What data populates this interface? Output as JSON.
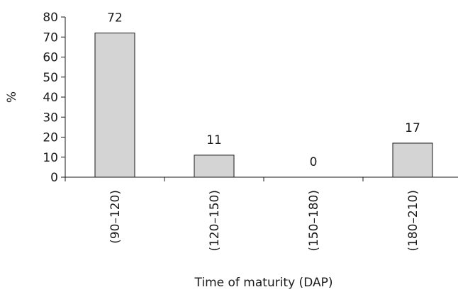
{
  "chart_data": {
    "type": "bar",
    "categories": [
      "(90–120)",
      "(120–150)",
      "(150–180)",
      "(180–210)"
    ],
    "values": [
      72,
      11,
      0,
      17
    ],
    "data_labels": [
      "72",
      "11",
      "0",
      "17"
    ],
    "title": "",
    "xlabel": "Time of maturity (DAP)",
    "ylabel": "%",
    "ylim": [
      0,
      80
    ],
    "yticks": [
      0,
      10,
      20,
      30,
      40,
      50,
      60,
      70,
      80
    ],
    "ytick_labels": [
      "0",
      "10",
      "20",
      "30",
      "40",
      "50",
      "60",
      "70",
      "80"
    ],
    "grid": false,
    "legend": "none",
    "bar_color": "#d4d4d4",
    "edge_color": "#1a1a1a"
  }
}
